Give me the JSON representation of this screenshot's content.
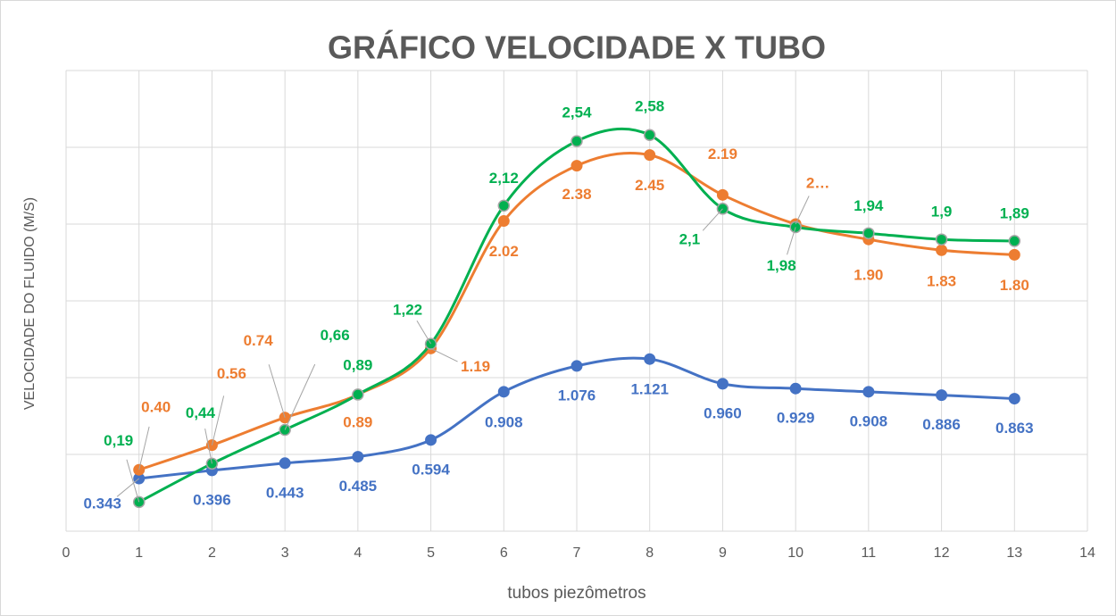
{
  "chart_data": {
    "type": "line",
    "title": "GRÁFICO VELOCIDADE X TUBO",
    "xlabel": "tubos piezômetros",
    "ylabel": "VELOCIDADE DO FLUIDO (M/S)",
    "x": [
      1,
      2,
      3,
      4,
      5,
      6,
      7,
      8,
      9,
      10,
      11,
      12,
      13
    ],
    "xlim": [
      0,
      14
    ],
    "xticks": [
      0,
      1,
      2,
      3,
      4,
      5,
      6,
      7,
      8,
      9,
      10,
      11,
      12,
      13,
      14
    ],
    "ylim": [
      0,
      3
    ],
    "yticks": [
      0,
      0.5,
      1,
      1.5,
      2,
      2.5,
      3
    ],
    "grid": true,
    "smooth": true,
    "series": [
      {
        "color": "#4472c4",
        "values": [
          0.343,
          0.396,
          0.443,
          0.485,
          0.594,
          0.908,
          1.076,
          1.121,
          0.96,
          0.929,
          0.908,
          0.886,
          0.863
        ],
        "value_labels": [
          "0.343",
          "0.396",
          "0.443",
          "0.485",
          "0.594",
          "0.908",
          "1.076",
          "1.121",
          "0.960",
          "0.929",
          "0.908",
          "0.886",
          "0.863"
        ]
      },
      {
        "color": "#ed7d31",
        "values": [
          0.4,
          0.56,
          0.74,
          0.89,
          1.19,
          2.02,
          2.38,
          2.45,
          2.19,
          2.0,
          1.9,
          1.83,
          1.8
        ],
        "value_labels": [
          "0.40",
          "0.56",
          "0.74",
          "0.89",
          "1.19",
          "2.02",
          "2.38",
          "2.45",
          "2.19",
          "2…",
          "1.90",
          "1.83",
          "1.80"
        ]
      },
      {
        "color": "#00b050",
        "values": [
          0.19,
          0.44,
          0.66,
          0.89,
          1.22,
          2.12,
          2.54,
          2.58,
          2.1,
          1.98,
          1.94,
          1.9,
          1.89
        ],
        "value_labels": [
          "0,19",
          "0,44",
          "0,66",
          "0,89",
          "1,22",
          "2,12",
          "2,54",
          "2,58",
          "2,1",
          "1,98",
          "1,94",
          "1,9",
          "1,89"
        ]
      }
    ]
  }
}
